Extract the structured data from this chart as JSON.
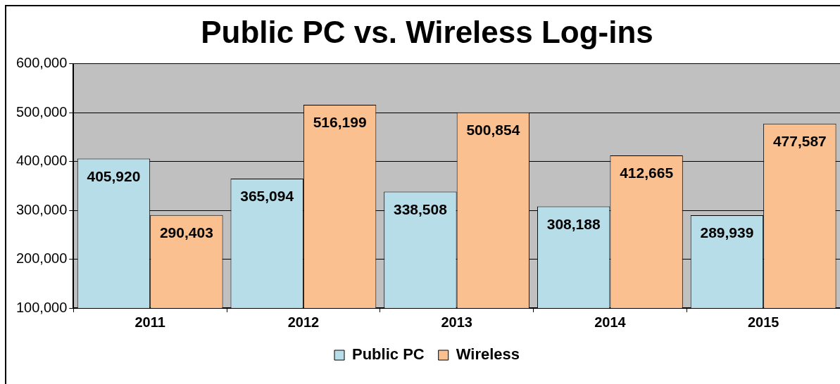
{
  "chart_data": {
    "type": "bar",
    "title": "Public PC vs. Wireless Log-ins",
    "categories": [
      "2011",
      "2012",
      "2013",
      "2014",
      "2015"
    ],
    "series": [
      {
        "name": "Public PC",
        "color": "#b7dde8",
        "values": [
          405920,
          365094,
          338508,
          308188,
          289939
        ],
        "value_labels": [
          "405,920",
          "365,094",
          "338,508",
          "308,188",
          "289,939"
        ]
      },
      {
        "name": "Wireless",
        "color": "#fac090",
        "values": [
          290403,
          516199,
          500854,
          412665,
          477587
        ],
        "value_labels": [
          "290,403",
          "516,199",
          "500,854",
          "412,665",
          "477,587"
        ]
      }
    ],
    "ylim": [
      100000,
      600000
    ],
    "yticks": [
      {
        "value": 100000,
        "label": "100,000"
      },
      {
        "value": 200000,
        "label": "200,000"
      },
      {
        "value": 300000,
        "label": "300,000"
      },
      {
        "value": 400000,
        "label": "400,000"
      },
      {
        "value": 500000,
        "label": "500,000"
      },
      {
        "value": 600000,
        "label": "600,000"
      }
    ],
    "grid": "y",
    "legend": "bottom"
  }
}
